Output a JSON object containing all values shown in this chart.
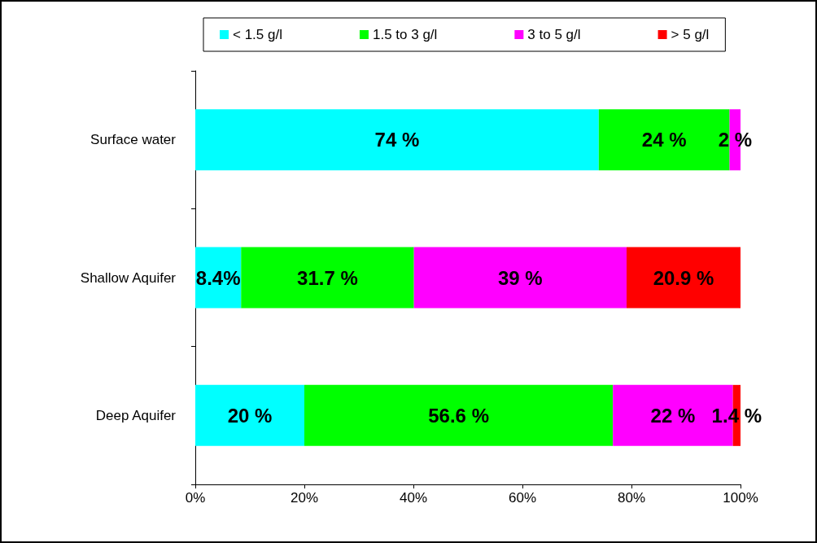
{
  "chart_data": {
    "type": "bar",
    "orientation": "horizontal",
    "stacked": true,
    "categories": [
      "Surface water",
      "Shallow Aquifer",
      "Deep Aquifer"
    ],
    "series": [
      {
        "name": "< 1.5 g/l",
        "color": "#00ffff",
        "values": [
          74,
          8.4,
          20
        ],
        "value_labels": [
          "74 %",
          "8.4%",
          "20 %"
        ]
      },
      {
        "name": "1.5 to 3 g/l",
        "color": "#00ff00",
        "values": [
          24,
          31.7,
          56.6
        ],
        "value_labels": [
          "24 %",
          "31.7 %",
          "56.6 %"
        ]
      },
      {
        "name": "3 to 5 g/l",
        "color": "#ff00ff",
        "values": [
          2,
          39,
          22
        ],
        "value_labels": [
          "2 %",
          "39 %",
          "22 %"
        ]
      },
      {
        "name": "> 5 g/l",
        "color": "#ff0000",
        "values": [
          null,
          20.9,
          1.4
        ],
        "value_labels": [
          null,
          "20.9 %",
          "1.4 %"
        ]
      }
    ],
    "xlim": [
      0,
      100
    ],
    "xticks": [
      {
        "value": 0,
        "label": "0%"
      },
      {
        "value": 20,
        "label": "20%"
      },
      {
        "value": 40,
        "label": "40%"
      },
      {
        "value": 60,
        "label": "60%"
      },
      {
        "value": 80,
        "label": "80%"
      },
      {
        "value": 100,
        "label": "100%"
      }
    ],
    "grid": false,
    "legend": "top"
  }
}
